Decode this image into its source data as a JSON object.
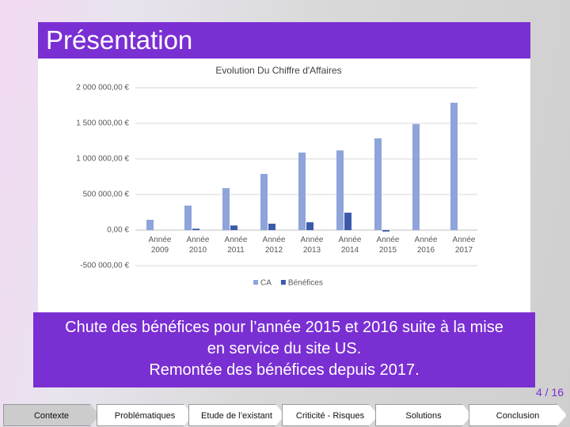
{
  "header": {
    "title": "Présentation"
  },
  "chart_data": {
    "type": "bar",
    "title": "Evolution Du Chiffre d'Affaires",
    "categories": [
      "Année 2009",
      "Année 2010",
      "Année 2011",
      "Année 2012",
      "Année 2013",
      "Année 2014",
      "Année 2015",
      "Année 2016",
      "Année 2017"
    ],
    "series": [
      {
        "name": "CA",
        "color": "#8fa4db",
        "values": [
          145000,
          345000,
          590000,
          790000,
          1090000,
          1120000,
          1290000,
          1490000,
          1790000
        ]
      },
      {
        "name": "Bénéfices",
        "color": "#3b5ba9",
        "values": [
          null,
          20000,
          65000,
          90000,
          110000,
          245000,
          -20000,
          null,
          null
        ]
      }
    ],
    "ylim": [
      -500000,
      2000000
    ],
    "yticks": [
      {
        "value": -500000,
        "label": "-500 000,00 €"
      },
      {
        "value": 0,
        "label": "0,00 €"
      },
      {
        "value": 500000,
        "label": "500 000,00 €"
      },
      {
        "value": 1000000,
        "label": "1 000 000,00 €"
      },
      {
        "value": 1500000,
        "label": "1 500 000,00 €"
      },
      {
        "value": 2000000,
        "label": "2 000 000,00 €"
      }
    ],
    "grid": true,
    "legend": "bottom"
  },
  "caption": [
    "Chute des bénéfices pour l’année 2015 et 2016 suite à la mise",
    "en service du site US.",
    "Remontée des bénéfices depuis 2017."
  ],
  "page_number": "4 / 16",
  "nav": [
    "Contexte",
    "Problématiques",
    "Etude de l’existant",
    "Criticité - Risques",
    "Solutions",
    "Conclusion"
  ]
}
